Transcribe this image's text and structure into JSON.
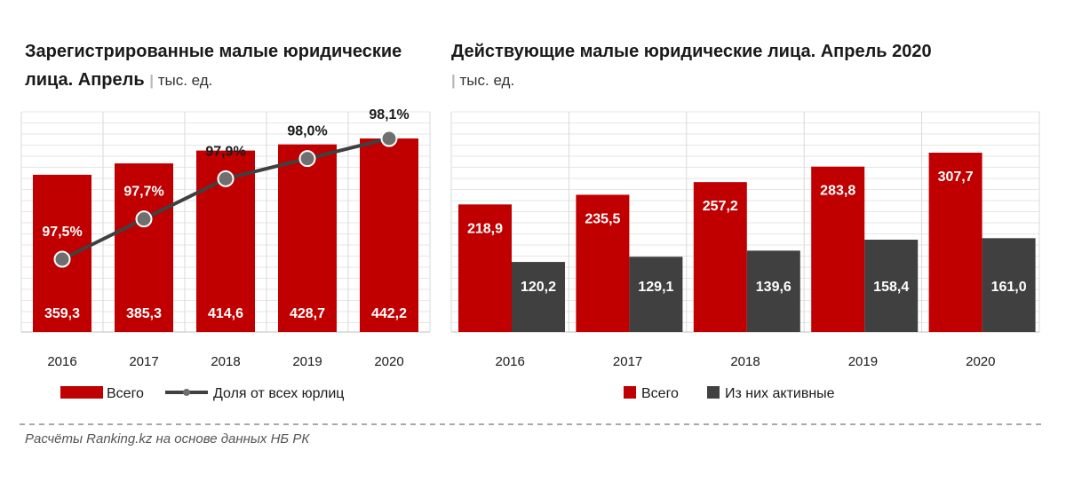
{
  "source_note": "Расчёты Ranking.kz на основе данных НБ РК",
  "colors": {
    "red": "#c00000",
    "dark": "#404040",
    "line": "#404040"
  },
  "chart_data": [
    {
      "type": "bar",
      "title": "Зарегистрированные малые юридические лица. Апрель",
      "unit": "тыс. ед.",
      "categories": [
        "2016",
        "2017",
        "2018",
        "2019",
        "2020"
      ],
      "series": [
        {
          "name": "Всего",
          "type": "bar",
          "values": [
            359.3,
            385.3,
            414.6,
            428.7,
            442.2
          ],
          "labels": [
            "359,3",
            "385,3",
            "414,6",
            "428,7",
            "442,2"
          ]
        },
        {
          "name": "Доля от всех юрлиц",
          "type": "line",
          "values": [
            97.5,
            97.7,
            97.9,
            98.0,
            98.1
          ],
          "labels": [
            "97,5%",
            "97,7%",
            "97,9%",
            "98,0%",
            "98,1%"
          ]
        }
      ],
      "legend_position": "bottom",
      "grid": true
    },
    {
      "type": "bar",
      "title": "Действующие малые юридические лица. Апрель 2020",
      "unit": "тыс. ед.",
      "categories": [
        "2016",
        "2017",
        "2018",
        "2019",
        "2020"
      ],
      "series": [
        {
          "name": "Всего",
          "values": [
            218.9,
            235.5,
            257.2,
            283.8,
            307.7
          ],
          "labels": [
            "218,9",
            "235,5",
            "257,2",
            "283,8",
            "307,7"
          ]
        },
        {
          "name": "Из них активные",
          "values": [
            120.2,
            129.1,
            139.6,
            158.4,
            161.0
          ],
          "labels": [
            "120,2",
            "129,1",
            "139,6",
            "158,4",
            "161,0"
          ]
        }
      ],
      "legend_position": "bottom",
      "grid": true
    }
  ]
}
